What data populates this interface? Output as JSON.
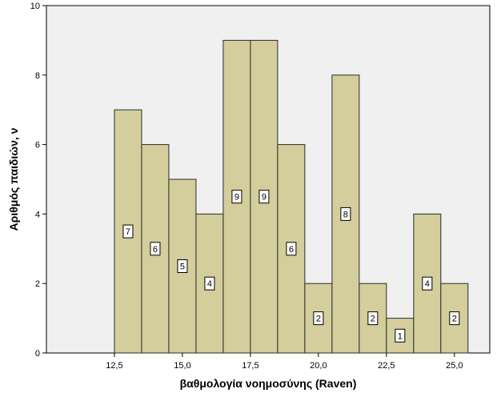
{
  "chart_data": {
    "type": "bar",
    "title": "",
    "xlabel": "βαθμολογία νοημοσύνης (Raven)",
    "ylabel": "Αριθμός παιδιών, ν",
    "xlim": [
      10.0,
      26.3
    ],
    "ylim": [
      0,
      10
    ],
    "xticks": [
      12.5,
      15.0,
      17.5,
      20.0,
      22.5,
      25.0
    ],
    "xtick_labels": [
      "12,5",
      "15,0",
      "17,5",
      "20,0",
      "22,5",
      "25,0"
    ],
    "yticks": [
      0,
      2,
      4,
      6,
      8,
      10
    ],
    "ytick_labels": [
      "0",
      "2",
      "4",
      "6",
      "8",
      "10"
    ],
    "bin_width": 1,
    "bins": [
      {
        "x_start": 12.5,
        "x_end": 13.5,
        "count": 7,
        "label": "7"
      },
      {
        "x_start": 13.5,
        "x_end": 14.5,
        "count": 6,
        "label": "6"
      },
      {
        "x_start": 14.5,
        "x_end": 15.5,
        "count": 5,
        "label": "5"
      },
      {
        "x_start": 15.5,
        "x_end": 16.5,
        "count": 4,
        "label": "4"
      },
      {
        "x_start": 16.5,
        "x_end": 17.5,
        "count": 9,
        "label": "9"
      },
      {
        "x_start": 17.5,
        "x_end": 18.5,
        "count": 9,
        "label": "9"
      },
      {
        "x_start": 18.5,
        "x_end": 19.5,
        "count": 6,
        "label": "6"
      },
      {
        "x_start": 19.5,
        "x_end": 20.5,
        "count": 2,
        "label": "2"
      },
      {
        "x_start": 20.5,
        "x_end": 21.5,
        "count": 8,
        "label": "8"
      },
      {
        "x_start": 21.5,
        "x_end": 22.5,
        "count": 2,
        "label": "2"
      },
      {
        "x_start": 22.5,
        "x_end": 23.5,
        "count": 1,
        "label": "1"
      },
      {
        "x_start": 23.5,
        "x_end": 24.5,
        "count": 4,
        "label": "4"
      },
      {
        "x_start": 24.5,
        "x_end": 25.5,
        "count": 2,
        "label": "2"
      }
    ],
    "grid": false,
    "legend": "none",
    "colors": {
      "bar_fill": "#d3ce9b",
      "bar_stroke": "#2b2b2b",
      "plot_background": "#f0f0f0",
      "axis": "#000000"
    }
  }
}
